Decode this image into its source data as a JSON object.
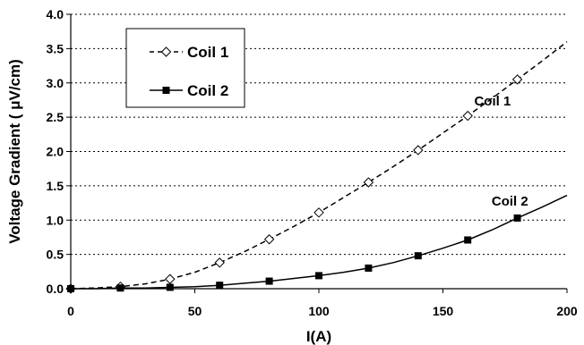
{
  "chart_data": {
    "type": "line",
    "xlabel": "I(A)",
    "ylabel": "Voltage Gradient ( μV/cm)",
    "xlim": [
      0,
      200
    ],
    "ylim": [
      0,
      4.0
    ],
    "x_ticks": [
      "0",
      "50",
      "100",
      "150",
      "200"
    ],
    "y_ticks": [
      "0.0",
      "0.5",
      "1.0",
      "1.5",
      "2.0",
      "2.5",
      "3.0",
      "3.5",
      "4.0"
    ],
    "grid": "horizontal dotted",
    "legend_position": "top-left",
    "series": [
      {
        "name": "Coil 1",
        "marker": "open-diamond",
        "line": "dashed",
        "color": "#000000",
        "x": [
          0,
          20,
          40,
          60,
          80,
          100,
          120,
          140,
          160,
          180
        ],
        "y": [
          0.0,
          0.03,
          0.14,
          0.38,
          0.72,
          1.11,
          1.55,
          2.02,
          2.52,
          3.05
        ],
        "fit": {
          "x": [
            0,
            10,
            20,
            30,
            40,
            50,
            60,
            70,
            80,
            90,
            100,
            110,
            120,
            130,
            140,
            150,
            160,
            170,
            180,
            190,
            200
          ],
          "y": [
            0.0,
            0.01,
            0.03,
            0.07,
            0.14,
            0.24,
            0.38,
            0.54,
            0.72,
            0.91,
            1.11,
            1.33,
            1.55,
            1.78,
            2.02,
            2.27,
            2.52,
            2.78,
            3.05,
            3.32,
            3.6
          ]
        }
      },
      {
        "name": "Coil 2",
        "marker": "filled-square",
        "line": "solid",
        "color": "#000000",
        "x": [
          0,
          20,
          40,
          60,
          80,
          100,
          120,
          140,
          160,
          180
        ],
        "y": [
          0.0,
          0.01,
          0.02,
          0.05,
          0.11,
          0.19,
          0.3,
          0.48,
          0.71,
          1.03
        ],
        "fit": {
          "x": [
            0,
            10,
            20,
            30,
            40,
            50,
            60,
            70,
            80,
            90,
            100,
            110,
            120,
            130,
            140,
            150,
            160,
            170,
            180,
            190,
            200
          ],
          "y": [
            0.0,
            0.0,
            0.01,
            0.01,
            0.02,
            0.03,
            0.05,
            0.08,
            0.11,
            0.15,
            0.19,
            0.24,
            0.3,
            0.38,
            0.48,
            0.59,
            0.71,
            0.86,
            1.03,
            1.19,
            1.36
          ]
        }
      }
    ],
    "annotations": [
      {
        "text": "Coil 1",
        "x": 170,
        "y": 2.67
      },
      {
        "text": "Coil 2",
        "x": 177,
        "y": 1.21
      }
    ]
  }
}
